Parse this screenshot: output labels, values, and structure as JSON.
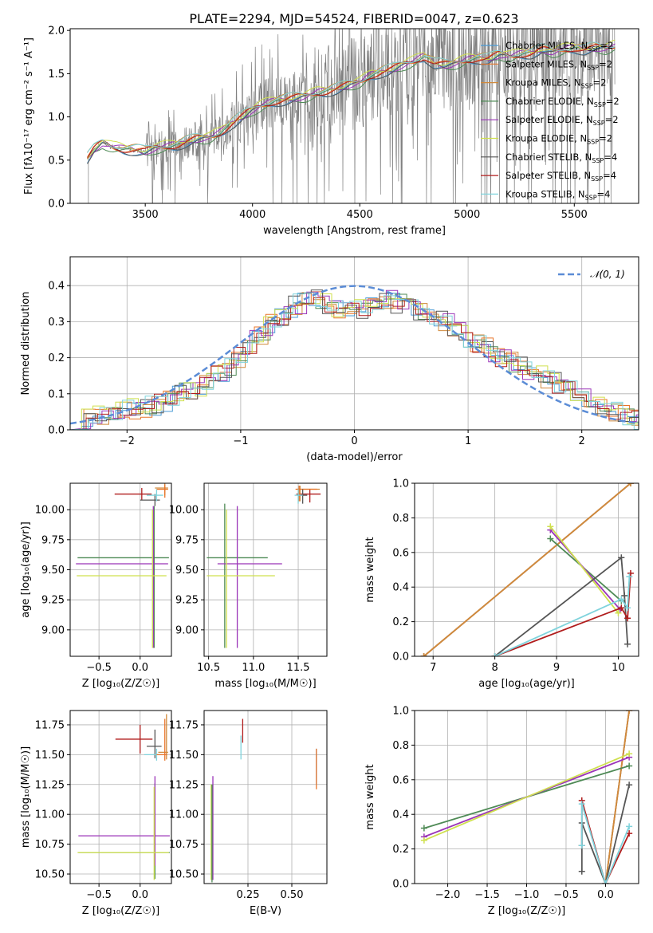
{
  "figure": {
    "title": "PLATE=2294, MJD=54524, FIBERID=0047, z=0.623"
  },
  "legend_colors": {
    "Chabrier MILES": "#4a9bd6",
    "Salpeter MILES": "#e8752a",
    "Kroupa MILES": "#d08a3c",
    "Chabrier ELODIE": "#4e8a55",
    "Salpeter ELODIE": "#9b35b8",
    "Kroupa ELODIE": "#cfe04e",
    "Chabrier STELIB": "#555555",
    "Salpeter STELIB": "#b01c1c",
    "Kroupa STELIB": "#7fd3dc"
  },
  "chart_data": [
    {
      "id": "spectrum",
      "type": "line",
      "xlabel": "wavelength [Angstrom, rest frame]",
      "ylabel": "Flux [f_λ 10^-17 erg cm^-2 s^-1 A^-1]",
      "xlim": [
        3150,
        5800
      ],
      "ylim": [
        0,
        2.02
      ],
      "xticks": [
        3500,
        4000,
        4500,
        5000,
        5500
      ],
      "yticks": [
        0.0,
        0.5,
        1.0,
        1.5,
        2.0
      ],
      "grid": false,
      "legend_position": "upper-right",
      "legend": [
        {
          "label": "Chabrier MILES, N",
          "sub": "SSP",
          "tail": "=2"
        },
        {
          "label": "Salpeter MILES, N",
          "sub": "SSP",
          "tail": "=2"
        },
        {
          "label": "Kroupa MILES, N",
          "sub": "SSP",
          "tail": "=2"
        },
        {
          "label": "Chabrier ELODIE, N",
          "sub": "SSP",
          "tail": "=2"
        },
        {
          "label": "Salpeter ELODIE, N",
          "sub": "SSP",
          "tail": "=2"
        },
        {
          "label": "Kroupa ELODIE, N",
          "sub": "SSP",
          "tail": "=2"
        },
        {
          "label": "Chabrier STELIB, N",
          "sub": "SSP",
          "tail": "=4"
        },
        {
          "label": "Salpeter STELIB, N",
          "sub": "SSP",
          "tail": "=4"
        },
        {
          "label": "Kroupa STELIB, N",
          "sub": "SSP",
          "tail": "=4"
        }
      ],
      "model_continuum": {
        "x": [
          3230,
          3260,
          3300,
          3350,
          3400,
          3450,
          3500,
          3550,
          3600,
          3650,
          3700,
          3750,
          3800,
          3850,
          3900,
          3950,
          4000,
          4050,
          4100,
          4150,
          4200,
          4250,
          4300,
          4350,
          4400,
          4450,
          4500,
          4550,
          4600,
          4650,
          4700,
          4750,
          4800,
          4850,
          4900,
          4950,
          5000,
          5050,
          5100,
          5150,
          5200,
          5250,
          5300,
          5350,
          5400,
          5450,
          5500,
          5550,
          5600,
          5650,
          5690
        ],
        "y": [
          0.52,
          0.62,
          0.7,
          0.65,
          0.63,
          0.62,
          0.6,
          0.64,
          0.66,
          0.68,
          0.72,
          0.75,
          0.76,
          0.82,
          0.92,
          1.0,
          1.08,
          1.14,
          1.18,
          1.2,
          1.22,
          1.24,
          1.28,
          1.3,
          1.33,
          1.37,
          1.4,
          1.48,
          1.52,
          1.55,
          1.6,
          1.64,
          1.7,
          1.62,
          1.6,
          1.62,
          1.66,
          1.68,
          1.67,
          1.72,
          1.7,
          1.73,
          1.74,
          1.78,
          1.75,
          1.78,
          1.8,
          1.78,
          1.8,
          1.79,
          1.82
        ]
      },
      "data_coverage": [
        3235,
        5690
      ]
    },
    {
      "id": "residual-hist",
      "type": "line",
      "xlabel": "(data-model)/error",
      "ylabel": "Normed distribution",
      "xlim": [
        -2.5,
        2.5
      ],
      "ylim": [
        0,
        0.48
      ],
      "xticks": [
        -2,
        -1,
        0,
        1,
        2
      ],
      "yticks": [
        0.0,
        0.1,
        0.2,
        0.3,
        0.4
      ],
      "grid": true,
      "legend_position": "upper-right",
      "legend": [
        {
          "label": "𝒩(0, 1)"
        }
      ],
      "series": [
        {
          "name": "𝒩(0, 1)",
          "type": "gaussian",
          "mu": 0,
          "sigma": 1,
          "color": "#5b8cd6"
        }
      ],
      "histogram_envelope": {
        "bin_width": 0.1,
        "x": [
          -2.5,
          -2.3,
          -2.1,
          -1.9,
          -1.7,
          -1.5,
          -1.3,
          -1.1,
          -0.9,
          -0.7,
          -0.5,
          -0.3,
          -0.1,
          0.1,
          0.3,
          0.5,
          0.7,
          0.9,
          1.1,
          1.3,
          1.5,
          1.7,
          1.9,
          2.1,
          2.3,
          2.5
        ],
        "y": [
          0.02,
          0.04,
          0.05,
          0.06,
          0.07,
          0.1,
          0.13,
          0.17,
          0.24,
          0.3,
          0.35,
          0.36,
          0.33,
          0.34,
          0.36,
          0.34,
          0.32,
          0.28,
          0.24,
          0.2,
          0.17,
          0.14,
          0.11,
          0.07,
          0.05,
          0.03
        ]
      }
    },
    {
      "id": "age-vs-Z",
      "type": "scatter",
      "xlabel": "Z [log10(Z/Z☉)]",
      "ylabel": "age  [log10(age/yr)]",
      "xlim": [
        -0.85,
        0.38
      ],
      "ylim": [
        8.78,
        10.22
      ],
      "xticks": [
        -0.5,
        0.0
      ],
      "yticks": [
        9.0,
        9.25,
        9.5,
        9.75,
        10.0
      ],
      "grid": true,
      "errorbars": [
        {
          "model": "Salpeter STELIB",
          "x": 0.02,
          "y": 10.13,
          "xerr": [
            0.33,
            0.12
          ],
          "yerr": [
            0.05,
            0.05
          ]
        },
        {
          "model": "Kroupa MILES",
          "x": 0.3,
          "y": 10.18,
          "xerr": [
            0.12,
            0.04
          ],
          "yerr": [
            0.06,
            0.04
          ]
        },
        {
          "model": "Salpeter MILES",
          "x": 0.3,
          "y": 10.17,
          "xerr": [
            0.1,
            0.04
          ],
          "yerr": [
            0.07,
            0.04
          ]
        },
        {
          "model": "Chabrier STELIB",
          "x": 0.18,
          "y": 10.08,
          "xerr": [
            0.18,
            0.06
          ],
          "yerr": [
            0.05,
            0.05
          ]
        },
        {
          "model": "Kroupa STELIB",
          "x": 0.2,
          "y": 10.12,
          "xerr": [
            0.12,
            0.08
          ],
          "yerr": [
            0.05,
            0.05
          ]
        },
        {
          "model": "Chabrier ELODIE",
          "x": 0.17,
          "y": 9.6,
          "xerr": [
            0.93,
            0.18
          ],
          "yerr": [
            0.75,
            0.43
          ]
        },
        {
          "model": "Salpeter ELODIE",
          "x": 0.16,
          "y": 9.55,
          "xerr": [
            0.94,
            0.18
          ],
          "yerr": [
            0.7,
            0.48
          ]
        },
        {
          "model": "Kroupa ELODIE",
          "x": 0.15,
          "y": 9.45,
          "xerr": [
            0.92,
            0.17
          ],
          "yerr": [
            0.6,
            0.55
          ]
        }
      ]
    },
    {
      "id": "age-vs-mass",
      "type": "scatter",
      "xlabel": "mass [log10(M/M☉)]",
      "ylabel": "",
      "xlim": [
        10.45,
        11.82
      ],
      "ylim": [
        8.78,
        10.22
      ],
      "xticks": [
        10.5,
        11.0,
        11.5
      ],
      "yticks": [
        9.0,
        9.25,
        9.5,
        9.75,
        10.0
      ],
      "grid": true,
      "errorbars": [
        {
          "model": "Salpeter STELIB",
          "x": 11.63,
          "y": 10.13,
          "xerr": [
            0.15,
            0.12
          ],
          "yerr": [
            0.07,
            0.04
          ]
        },
        {
          "model": "Kroupa MILES",
          "x": 11.52,
          "y": 10.17,
          "xerr": [
            0.04,
            0.22
          ],
          "yerr": [
            0.1,
            0.03
          ]
        },
        {
          "model": "Salpeter MILES",
          "x": 11.51,
          "y": 10.17,
          "xerr": [
            0.04,
            0.2
          ],
          "yerr": [
            0.1,
            0.03
          ]
        },
        {
          "model": "Chabrier STELIB",
          "x": 11.55,
          "y": 10.12,
          "xerr": [
            0.06,
            0.05
          ],
          "yerr": [
            0.07,
            0.05
          ]
        },
        {
          "model": "Kroupa STELIB",
          "x": 11.5,
          "y": 10.12,
          "xerr": [
            0.04,
            0.05
          ],
          "yerr": [
            0.07,
            0.05
          ]
        },
        {
          "model": "Chabrier ELODIE",
          "x": 10.68,
          "y": 9.6,
          "xerr": [
            0.2,
            0.48
          ],
          "yerr": [
            0.75,
            0.45
          ]
        },
        {
          "model": "Salpeter ELODIE",
          "x": 10.82,
          "y": 9.55,
          "xerr": [
            0.22,
            0.5
          ],
          "yerr": [
            0.7,
            0.48
          ]
        },
        {
          "model": "Kroupa ELODIE",
          "x": 10.7,
          "y": 9.45,
          "xerr": [
            0.22,
            0.54
          ],
          "yerr": [
            0.6,
            0.55
          ]
        }
      ]
    },
    {
      "id": "weight-vs-age",
      "type": "line",
      "xlabel": "age  [log10(age/yr)]",
      "ylabel": "mass weight",
      "xlim": [
        6.7,
        10.33
      ],
      "ylim": [
        0,
        1.0
      ],
      "xticks": [
        7,
        8,
        9,
        10
      ],
      "yticks": [
        0.0,
        0.2,
        0.4,
        0.6,
        0.8,
        1.0
      ],
      "grid": true,
      "series": [
        {
          "name": "Chabrier MILES",
          "x": [
            6.85,
            10.2
          ],
          "y": [
            0.0,
            1.0
          ]
        },
        {
          "name": "Salpeter MILES",
          "x": [
            6.85,
            10.2
          ],
          "y": [
            0.0,
            1.0
          ]
        },
        {
          "name": "Kroupa MILES",
          "x": [
            6.85,
            10.2
          ],
          "y": [
            0.0,
            1.0
          ]
        },
        {
          "name": "Chabrier ELODIE",
          "x": [
            8.9,
            10.05
          ],
          "y": [
            0.68,
            0.32
          ]
        },
        {
          "name": "Salpeter ELODIE",
          "x": [
            8.9,
            10.03
          ],
          "y": [
            0.73,
            0.27
          ]
        },
        {
          "name": "Kroupa ELODIE",
          "x": [
            8.9,
            10.0
          ],
          "y": [
            0.75,
            0.25
          ]
        },
        {
          "name": "Chabrier STELIB",
          "x": [
            8.0,
            10.05,
            10.1,
            10.15
          ],
          "y": [
            0.0,
            0.57,
            0.35,
            0.07
          ]
        },
        {
          "name": "Salpeter STELIB",
          "x": [
            8.0,
            10.05,
            10.15,
            10.2
          ],
          "y": [
            0.0,
            0.28,
            0.22,
            0.48
          ]
        },
        {
          "name": "Kroupa STELIB",
          "x": [
            8.0,
            10.05,
            10.15,
            10.18
          ],
          "y": [
            0.0,
            0.33,
            0.28,
            0.46
          ]
        }
      ]
    },
    {
      "id": "mass-vs-Z",
      "type": "scatter",
      "xlabel": "Z [log10(Z/Z☉)]",
      "ylabel": "mass [log10(M/M☉)]",
      "xlim": [
        -0.85,
        0.38
      ],
      "ylim": [
        10.42,
        11.87
      ],
      "xticks": [
        -0.5,
        0.0
      ],
      "yticks": [
        10.5,
        10.75,
        11.0,
        11.25,
        11.5,
        11.75
      ],
      "grid": true,
      "errorbars": [
        {
          "model": "Salpeter STELIB",
          "x": 0.0,
          "y": 11.63,
          "xerr": [
            0.3,
            0.15
          ],
          "yerr": [
            0.12,
            0.12
          ]
        },
        {
          "model": "Chabrier STELIB",
          "x": 0.18,
          "y": 11.57,
          "xerr": [
            0.1,
            0.08
          ],
          "yerr": [
            0.1,
            0.14
          ]
        },
        {
          "model": "Kroupa STELIB",
          "x": 0.2,
          "y": 11.5,
          "xerr": [
            0.15,
            0.06
          ],
          "yerr": [
            0.05,
            0.05
          ]
        },
        {
          "model": "Kroupa MILES",
          "x": 0.32,
          "y": 11.52,
          "xerr": [
            0.1,
            0.02
          ],
          "yerr": [
            0.06,
            0.32
          ]
        },
        {
          "model": "Salpeter MILES",
          "x": 0.3,
          "y": 11.5,
          "xerr": [
            0.1,
            0.03
          ],
          "yerr": [
            0.05,
            0.3
          ]
        },
        {
          "model": "Chabrier ELODIE",
          "x": 0.18,
          "y": 10.68,
          "xerr": [
            0.93,
            0.18
          ],
          "yerr": [
            0.22,
            0.58
          ]
        },
        {
          "model": "Salpeter ELODIE",
          "x": 0.18,
          "y": 10.82,
          "xerr": [
            0.93,
            0.18
          ],
          "yerr": [
            0.25,
            0.5
          ]
        },
        {
          "model": "Kroupa ELODIE",
          "x": 0.17,
          "y": 10.68,
          "xerr": [
            0.93,
            0.18
          ],
          "yerr": [
            0.23,
            0.55
          ]
        }
      ]
    },
    {
      "id": "mass-vs-EBV",
      "type": "scatter",
      "xlabel": "E(B-V)",
      "ylabel": "",
      "xlim": [
        0.0,
        0.7
      ],
      "ylim": [
        10.42,
        11.87
      ],
      "xticks": [
        0.25,
        0.5
      ],
      "yticks": [
        10.5,
        10.75,
        11.0,
        11.25,
        11.5,
        11.75
      ],
      "grid": true,
      "errorbars": [
        {
          "model": "Salpeter STELIB",
          "x": 0.22,
          "y": 11.7,
          "xerr": [
            0,
            0
          ],
          "yerr": [
            0.1,
            0.1
          ]
        },
        {
          "model": "Kroupa STELIB",
          "x": 0.21,
          "y": 11.56,
          "xerr": [
            0,
            0
          ],
          "yerr": [
            0.1,
            0.1
          ]
        },
        {
          "model": "Chabrier MILES",
          "x": 0.64,
          "y": 11.4,
          "xerr": [
            0,
            0
          ],
          "yerr": [
            0.15,
            0.15
          ]
        },
        {
          "model": "Salpeter MILES",
          "x": 0.64,
          "y": 11.38,
          "xerr": [
            0,
            0
          ],
          "yerr": [
            0.17,
            0.17
          ]
        },
        {
          "model": "Salpeter ELODIE",
          "x": 0.05,
          "y": 10.9,
          "xerr": [
            0,
            0
          ],
          "yerr": [
            0.45,
            0.42
          ]
        },
        {
          "model": "Kroupa ELODIE",
          "x": 0.04,
          "y": 10.85,
          "xerr": [
            0,
            0
          ],
          "yerr": [
            0.4,
            0.4
          ]
        },
        {
          "model": "Chabrier ELODIE",
          "x": 0.045,
          "y": 10.85,
          "xerr": [
            0,
            0
          ],
          "yerr": [
            0.42,
            0.4
          ]
        }
      ]
    },
    {
      "id": "weight-vs-Z",
      "type": "line",
      "xlabel": "Z [log10(Z/Z☉)]",
      "ylabel": "mass weight",
      "xlim": [
        -2.42,
        0.42
      ],
      "ylim": [
        0,
        1.0
      ],
      "xticks": [
        -2.0,
        -1.5,
        -1.0,
        -0.5,
        0.0
      ],
      "yticks": [
        0.0,
        0.2,
        0.4,
        0.6,
        0.8,
        1.0
      ],
      "grid": true,
      "series": [
        {
          "name": "Chabrier MILES",
          "x": [
            0.0,
            0.3
          ],
          "y": [
            0.0,
            1.0
          ]
        },
        {
          "name": "Salpeter MILES",
          "x": [
            0.0,
            0.3
          ],
          "y": [
            0.0,
            1.0
          ]
        },
        {
          "name": "Kroupa MILES",
          "x": [
            0.0,
            0.3
          ],
          "y": [
            0.0,
            1.0
          ]
        },
        {
          "name": "Chabrier ELODIE",
          "x": [
            -2.3,
            0.3
          ],
          "y": [
            0.32,
            0.68
          ]
        },
        {
          "name": "Salpeter ELODIE",
          "x": [
            -2.3,
            0.3
          ],
          "y": [
            0.27,
            0.73
          ]
        },
        {
          "name": "Kroupa ELODIE",
          "x": [
            -2.3,
            0.3
          ],
          "y": [
            0.25,
            0.75
          ]
        },
        {
          "name": "Chabrier STELIB",
          "x": [
            -0.3,
            -0.3,
            0.0,
            0.3
          ],
          "y": [
            0.07,
            0.35,
            0.0,
            0.57
          ]
        },
        {
          "name": "Salpeter STELIB",
          "x": [
            -0.3,
            -0.3,
            0.0,
            0.3
          ],
          "y": [
            0.22,
            0.48,
            0.0,
            0.29
          ]
        },
        {
          "name": "Kroupa STELIB",
          "x": [
            -0.3,
            -0.3,
            0.0,
            0.3
          ],
          "y": [
            0.22,
            0.46,
            0.0,
            0.33
          ]
        }
      ]
    }
  ]
}
